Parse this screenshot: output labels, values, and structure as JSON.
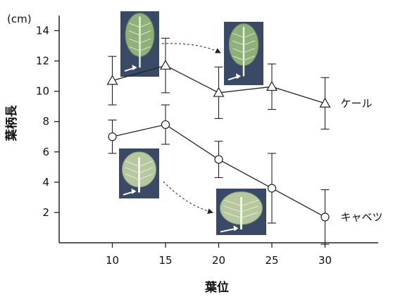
{
  "chart_data": {
    "type": "line",
    "unit_label": "(cm)",
    "ylabel": "葉柄長",
    "xlabel": "葉位",
    "x": [
      10,
      15,
      20,
      25,
      30
    ],
    "xlim": [
      5,
      35
    ],
    "ylim": [
      0,
      15
    ],
    "y_ticks": [
      2,
      4,
      6,
      8,
      10,
      12,
      14
    ],
    "grid": false,
    "series": [
      {
        "name": "ケール",
        "marker": "triangle",
        "values": [
          10.7,
          11.7,
          9.9,
          10.3,
          9.2
        ],
        "error": [
          1.6,
          1.8,
          1.7,
          1.5,
          1.7
        ]
      },
      {
        "name": "キャベツ",
        "marker": "circle",
        "values": [
          7.0,
          7.8,
          5.5,
          3.6,
          1.7
        ],
        "error": [
          1.1,
          1.3,
          1.2,
          2.3,
          1.8
        ]
      }
    ],
    "leaf_photos": [
      {
        "name": "kale-leaf-15",
        "kind": "kale",
        "arrow_to": "kale-leaf-20"
      },
      {
        "name": "kale-leaf-20",
        "kind": "kale"
      },
      {
        "name": "cabbage-leaf-15",
        "kind": "cabbage",
        "arrow_to": "cabbage-leaf-25"
      },
      {
        "name": "cabbage-leaf-25",
        "kind": "cabbage"
      }
    ],
    "colors": {
      "line": "#222222",
      "photo_bg": "#3a4a66"
    }
  }
}
